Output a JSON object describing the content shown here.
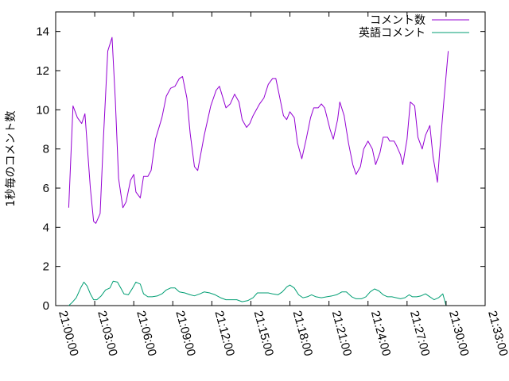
{
  "chart_data": {
    "type": "line",
    "title": "",
    "xlabel": "",
    "ylabel": "1秒毎のコメント数",
    "xlim": [
      "21:00:00",
      "21:33:00"
    ],
    "ylim": [
      0,
      15
    ],
    "x_ticks": [
      "21:00:00",
      "21:03:00",
      "21:06:00",
      "21:09:00",
      "21:12:00",
      "21:15:00",
      "21:18:00",
      "21:21:00",
      "21:24:00",
      "21:27:00",
      "21:30:00",
      "21:33:00"
    ],
    "y_ticks": [
      0,
      2,
      4,
      6,
      8,
      10,
      12,
      14
    ],
    "grid": false,
    "legend_position": "top-right",
    "series": [
      {
        "name": "コメント数",
        "color": "#9400d3",
        "points": [
          [
            "21:01:00",
            5.0
          ],
          [
            "21:01:20",
            10.2
          ],
          [
            "21:01:40",
            9.6
          ],
          [
            "21:02:00",
            9.3
          ],
          [
            "21:02:15",
            9.8
          ],
          [
            "21:02:40",
            6.0
          ],
          [
            "21:02:55",
            4.3
          ],
          [
            "21:03:05",
            4.2
          ],
          [
            "21:03:25",
            4.7
          ],
          [
            "21:03:40",
            8.5
          ],
          [
            "21:04:00",
            13.0
          ],
          [
            "21:04:20",
            13.7
          ],
          [
            "21:04:35",
            10.5
          ],
          [
            "21:04:50",
            6.5
          ],
          [
            "21:05:10",
            5.0
          ],
          [
            "21:05:25",
            5.3
          ],
          [
            "21:05:45",
            6.4
          ],
          [
            "21:06:00",
            6.7
          ],
          [
            "21:06:10",
            5.8
          ],
          [
            "21:06:30",
            5.5
          ],
          [
            "21:06:45",
            6.6
          ],
          [
            "21:07:05",
            6.6
          ],
          [
            "21:07:20",
            6.9
          ],
          [
            "21:07:40",
            8.5
          ],
          [
            "21:08:10",
            9.6
          ],
          [
            "21:08:30",
            10.7
          ],
          [
            "21:08:50",
            11.1
          ],
          [
            "21:09:10",
            11.2
          ],
          [
            "21:09:30",
            11.6
          ],
          [
            "21:09:45",
            11.7
          ],
          [
            "21:10:05",
            10.6
          ],
          [
            "21:10:20",
            8.8
          ],
          [
            "21:10:40",
            7.1
          ],
          [
            "21:10:55",
            6.9
          ],
          [
            "21:11:25",
            8.7
          ],
          [
            "21:11:55",
            10.2
          ],
          [
            "21:12:20",
            11.0
          ],
          [
            "21:12:35",
            11.2
          ],
          [
            "21:13:05",
            10.1
          ],
          [
            "21:13:25",
            10.3
          ],
          [
            "21:13:45",
            10.8
          ],
          [
            "21:14:05",
            10.4
          ],
          [
            "21:14:20",
            9.5
          ],
          [
            "21:14:40",
            9.1
          ],
          [
            "21:14:55",
            9.3
          ],
          [
            "21:15:10",
            9.7
          ],
          [
            "21:15:40",
            10.3
          ],
          [
            "21:16:00",
            10.6
          ],
          [
            "21:16:20",
            11.3
          ],
          [
            "21:16:40",
            11.6
          ],
          [
            "21:16:55",
            11.6
          ],
          [
            "21:17:10",
            10.8
          ],
          [
            "21:17:30",
            9.7
          ],
          [
            "21:17:45",
            9.5
          ],
          [
            "21:18:00",
            9.9
          ],
          [
            "21:18:20",
            9.6
          ],
          [
            "21:18:35",
            8.3
          ],
          [
            "21:18:55",
            7.5
          ],
          [
            "21:19:15",
            8.5
          ],
          [
            "21:19:35",
            9.6
          ],
          [
            "21:19:50",
            10.1
          ],
          [
            "21:20:10",
            10.1
          ],
          [
            "21:20:25",
            10.3
          ],
          [
            "21:20:40",
            10.1
          ],
          [
            "21:21:05",
            9.0
          ],
          [
            "21:21:20",
            8.5
          ],
          [
            "21:21:40",
            9.5
          ],
          [
            "21:21:50",
            10.4
          ],
          [
            "21:22:10",
            9.7
          ],
          [
            "21:22:30",
            8.3
          ],
          [
            "21:22:50",
            7.2
          ],
          [
            "21:23:05",
            6.7
          ],
          [
            "21:23:25",
            7.1
          ],
          [
            "21:23:40",
            8.0
          ],
          [
            "21:24:00",
            8.4
          ],
          [
            "21:24:20",
            8.0
          ],
          [
            "21:24:35",
            7.2
          ],
          [
            "21:24:55",
            7.8
          ],
          [
            "21:25:10",
            8.6
          ],
          [
            "21:25:30",
            8.6
          ],
          [
            "21:25:40",
            8.4
          ],
          [
            "21:26:00",
            8.4
          ],
          [
            "21:26:10",
            8.2
          ],
          [
            "21:26:30",
            7.7
          ],
          [
            "21:26:40",
            7.2
          ],
          [
            "21:27:00",
            8.5
          ],
          [
            "21:27:15",
            10.4
          ],
          [
            "21:27:35",
            10.2
          ],
          [
            "21:27:50",
            8.6
          ],
          [
            "21:28:10",
            8.0
          ],
          [
            "21:28:25",
            8.7
          ],
          [
            "21:28:45",
            9.2
          ],
          [
            "21:29:00",
            7.6
          ],
          [
            "21:29:20",
            6.3
          ],
          [
            "21:29:30",
            7.8
          ],
          [
            "21:29:50",
            10.5
          ],
          [
            "21:30:10",
            13.0
          ]
        ]
      },
      {
        "name": "英語コメント",
        "color": "#009e73",
        "points": [
          [
            "21:01:00",
            0.0
          ],
          [
            "21:01:15",
            0.15
          ],
          [
            "21:01:35",
            0.4
          ],
          [
            "21:01:55",
            0.9
          ],
          [
            "21:02:10",
            1.2
          ],
          [
            "21:02:25",
            1.0
          ],
          [
            "21:02:40",
            0.6
          ],
          [
            "21:02:55",
            0.3
          ],
          [
            "21:03:10",
            0.3
          ],
          [
            "21:03:30",
            0.5
          ],
          [
            "21:03:50",
            0.8
          ],
          [
            "21:04:10",
            0.9
          ],
          [
            "21:04:25",
            1.25
          ],
          [
            "21:04:45",
            1.2
          ],
          [
            "21:05:00",
            0.9
          ],
          [
            "21:05:15",
            0.6
          ],
          [
            "21:05:35",
            0.55
          ],
          [
            "21:05:55",
            0.9
          ],
          [
            "21:06:10",
            1.2
          ],
          [
            "21:06:30",
            1.1
          ],
          [
            "21:06:45",
            0.6
          ],
          [
            "21:07:05",
            0.45
          ],
          [
            "21:07:25",
            0.45
          ],
          [
            "21:07:50",
            0.5
          ],
          [
            "21:08:10",
            0.6
          ],
          [
            "21:08:30",
            0.8
          ],
          [
            "21:08:50",
            0.9
          ],
          [
            "21:09:10",
            0.9
          ],
          [
            "21:09:30",
            0.7
          ],
          [
            "21:09:55",
            0.65
          ],
          [
            "21:10:20",
            0.55
          ],
          [
            "21:10:40",
            0.5
          ],
          [
            "21:11:05",
            0.6
          ],
          [
            "21:11:25",
            0.7
          ],
          [
            "21:11:50",
            0.65
          ],
          [
            "21:12:15",
            0.55
          ],
          [
            "21:12:40",
            0.4
          ],
          [
            "21:13:05",
            0.3
          ],
          [
            "21:13:30",
            0.3
          ],
          [
            "21:13:55",
            0.3
          ],
          [
            "21:14:20",
            0.2
          ],
          [
            "21:14:45",
            0.25
          ],
          [
            "21:15:10",
            0.4
          ],
          [
            "21:15:30",
            0.65
          ],
          [
            "21:15:55",
            0.65
          ],
          [
            "21:16:20",
            0.65
          ],
          [
            "21:16:40",
            0.6
          ],
          [
            "21:17:05",
            0.55
          ],
          [
            "21:17:25",
            0.7
          ],
          [
            "21:17:45",
            0.95
          ],
          [
            "21:18:00",
            1.05
          ],
          [
            "21:18:20",
            0.9
          ],
          [
            "21:18:40",
            0.55
          ],
          [
            "21:19:00",
            0.4
          ],
          [
            "21:19:20",
            0.45
          ],
          [
            "21:19:40",
            0.55
          ],
          [
            "21:20:00",
            0.45
          ],
          [
            "21:20:25",
            0.4
          ],
          [
            "21:20:50",
            0.45
          ],
          [
            "21:21:15",
            0.5
          ],
          [
            "21:21:35",
            0.55
          ],
          [
            "21:22:00",
            0.7
          ],
          [
            "21:22:20",
            0.7
          ],
          [
            "21:22:45",
            0.45
          ],
          [
            "21:23:05",
            0.35
          ],
          [
            "21:23:30",
            0.35
          ],
          [
            "21:23:50",
            0.45
          ],
          [
            "21:24:10",
            0.7
          ],
          [
            "21:24:30",
            0.85
          ],
          [
            "21:24:50",
            0.75
          ],
          [
            "21:25:10",
            0.55
          ],
          [
            "21:25:30",
            0.45
          ],
          [
            "21:25:50",
            0.45
          ],
          [
            "21:26:10",
            0.4
          ],
          [
            "21:26:30",
            0.35
          ],
          [
            "21:26:50",
            0.4
          ],
          [
            "21:27:10",
            0.55
          ],
          [
            "21:27:25",
            0.45
          ],
          [
            "21:27:45",
            0.45
          ],
          [
            "21:28:05",
            0.5
          ],
          [
            "21:28:25",
            0.6
          ],
          [
            "21:28:45",
            0.45
          ],
          [
            "21:29:05",
            0.3
          ],
          [
            "21:29:25",
            0.4
          ],
          [
            "21:29:45",
            0.6
          ],
          [
            "21:30:00",
            0.0
          ]
        ]
      }
    ]
  }
}
